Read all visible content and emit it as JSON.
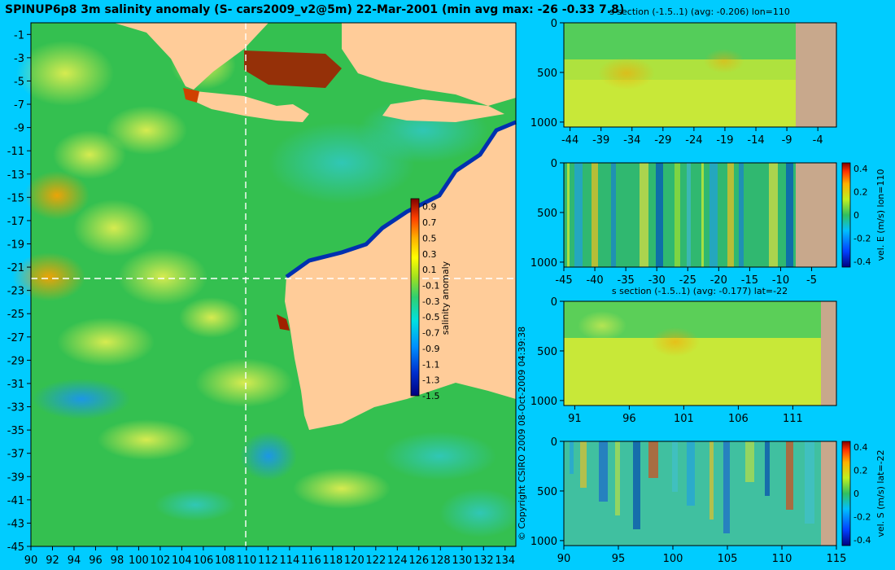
{
  "header": {
    "title": "SPINUP6p8 3m salinity anomaly (S- cars2009_v2@5m) 22-Mar-2001 (min avg max: -26 -0.33 7.8)",
    "copyright": "© Copyright CSIRO 2009   08-Oct-2009 04:39:38"
  },
  "colors": {
    "background": "#00ccff",
    "land_map": "#ffcc99",
    "land_section": "#c8a88c",
    "ocean_base": "#2fbf5b",
    "crosshair": "#ffffff"
  },
  "chart_data": [
    {
      "type": "heatmap",
      "name": "salinity-anomaly-map",
      "title": "SPINUP6p8 3m salinity anomaly (S- cars2009_v2@5m) 22-Mar-2001 (min avg max: -26 -0.33 7.8)",
      "x_ticks": [
        "90",
        "92",
        "94",
        "96",
        "98",
        "100",
        "102",
        "104",
        "106",
        "108",
        "110",
        "112",
        "114",
        "116",
        "118",
        "120",
        "122",
        "124",
        "126",
        "128",
        "130",
        "132",
        "134"
      ],
      "y_ticks": [
        "-1",
        "-3",
        "-5",
        "-7",
        "-9",
        "-11",
        "-13",
        "-15",
        "-17",
        "-19",
        "-21",
        "-23",
        "-25",
        "-27",
        "-29",
        "-31",
        "-33",
        "-35",
        "-37",
        "-39",
        "-41",
        "-43",
        "-45"
      ],
      "xlim": [
        90,
        135
      ],
      "ylim": [
        -45,
        0
      ],
      "crosshair": {
        "lon": 110,
        "lat": -22
      },
      "colorbar": {
        "label": "salinity anomaly",
        "ticks": [
          "0.9",
          "0.7",
          "0.5",
          "0.3",
          "0.1",
          "-0.1",
          "-0.3",
          "-0.5",
          "-0.7",
          "-0.9",
          "-1.1",
          "-1.3",
          "-1.5"
        ],
        "range": [
          -1.5,
          1.0
        ]
      }
    },
    {
      "type": "heatmap",
      "name": "s-section-lon110",
      "title": "s section (-1.5..1) (avg: -0.206) lon=110",
      "x_ticks": [
        "-44",
        "-39",
        "-34",
        "-29",
        "-24",
        "-19",
        "-14",
        "-9",
        "-4"
      ],
      "y_ticks": [
        "0",
        "500",
        "1000"
      ],
      "xlim": [
        -45,
        -1
      ],
      "ylim": [
        1050,
        0
      ]
    },
    {
      "type": "heatmap",
      "name": "vel-e-section-lon110",
      "ylabel": "vel. E (m/s) lon=110",
      "x_ticks": [
        "-45",
        "-40",
        "-35",
        "-30",
        "-25",
        "-20",
        "-15",
        "-10",
        "-5"
      ],
      "y_ticks": [
        "0",
        "500",
        "1000"
      ],
      "colorbar_ticks": [
        "0.4",
        "0.2",
        "0",
        "-0.2",
        "-0.4"
      ],
      "xlim": [
        -45,
        -1
      ],
      "ylim": [
        1050,
        0
      ]
    },
    {
      "type": "heatmap",
      "name": "s-section-lat-22",
      "title": "s section (-1.5..1) (avg: -0.177) lat=-22",
      "x_ticks": [
        "91",
        "96",
        "101",
        "106",
        "111"
      ],
      "y_ticks": [
        "0",
        "500",
        "1000"
      ],
      "xlim": [
        90,
        115
      ],
      "ylim": [
        1050,
        0
      ]
    },
    {
      "type": "heatmap",
      "name": "vel-s-section-lat-22",
      "ylabel": "vel. S (m/s) lat=-22",
      "x_ticks": [
        "90",
        "95",
        "100",
        "105",
        "110",
        "115"
      ],
      "y_ticks": [
        "0",
        "500",
        "1000"
      ],
      "colorbar_ticks": [
        "0.4",
        "0.2",
        "0",
        "-0.2",
        "-0.4"
      ],
      "xlim": [
        90,
        115
      ],
      "ylim": [
        1050,
        0
      ]
    }
  ]
}
